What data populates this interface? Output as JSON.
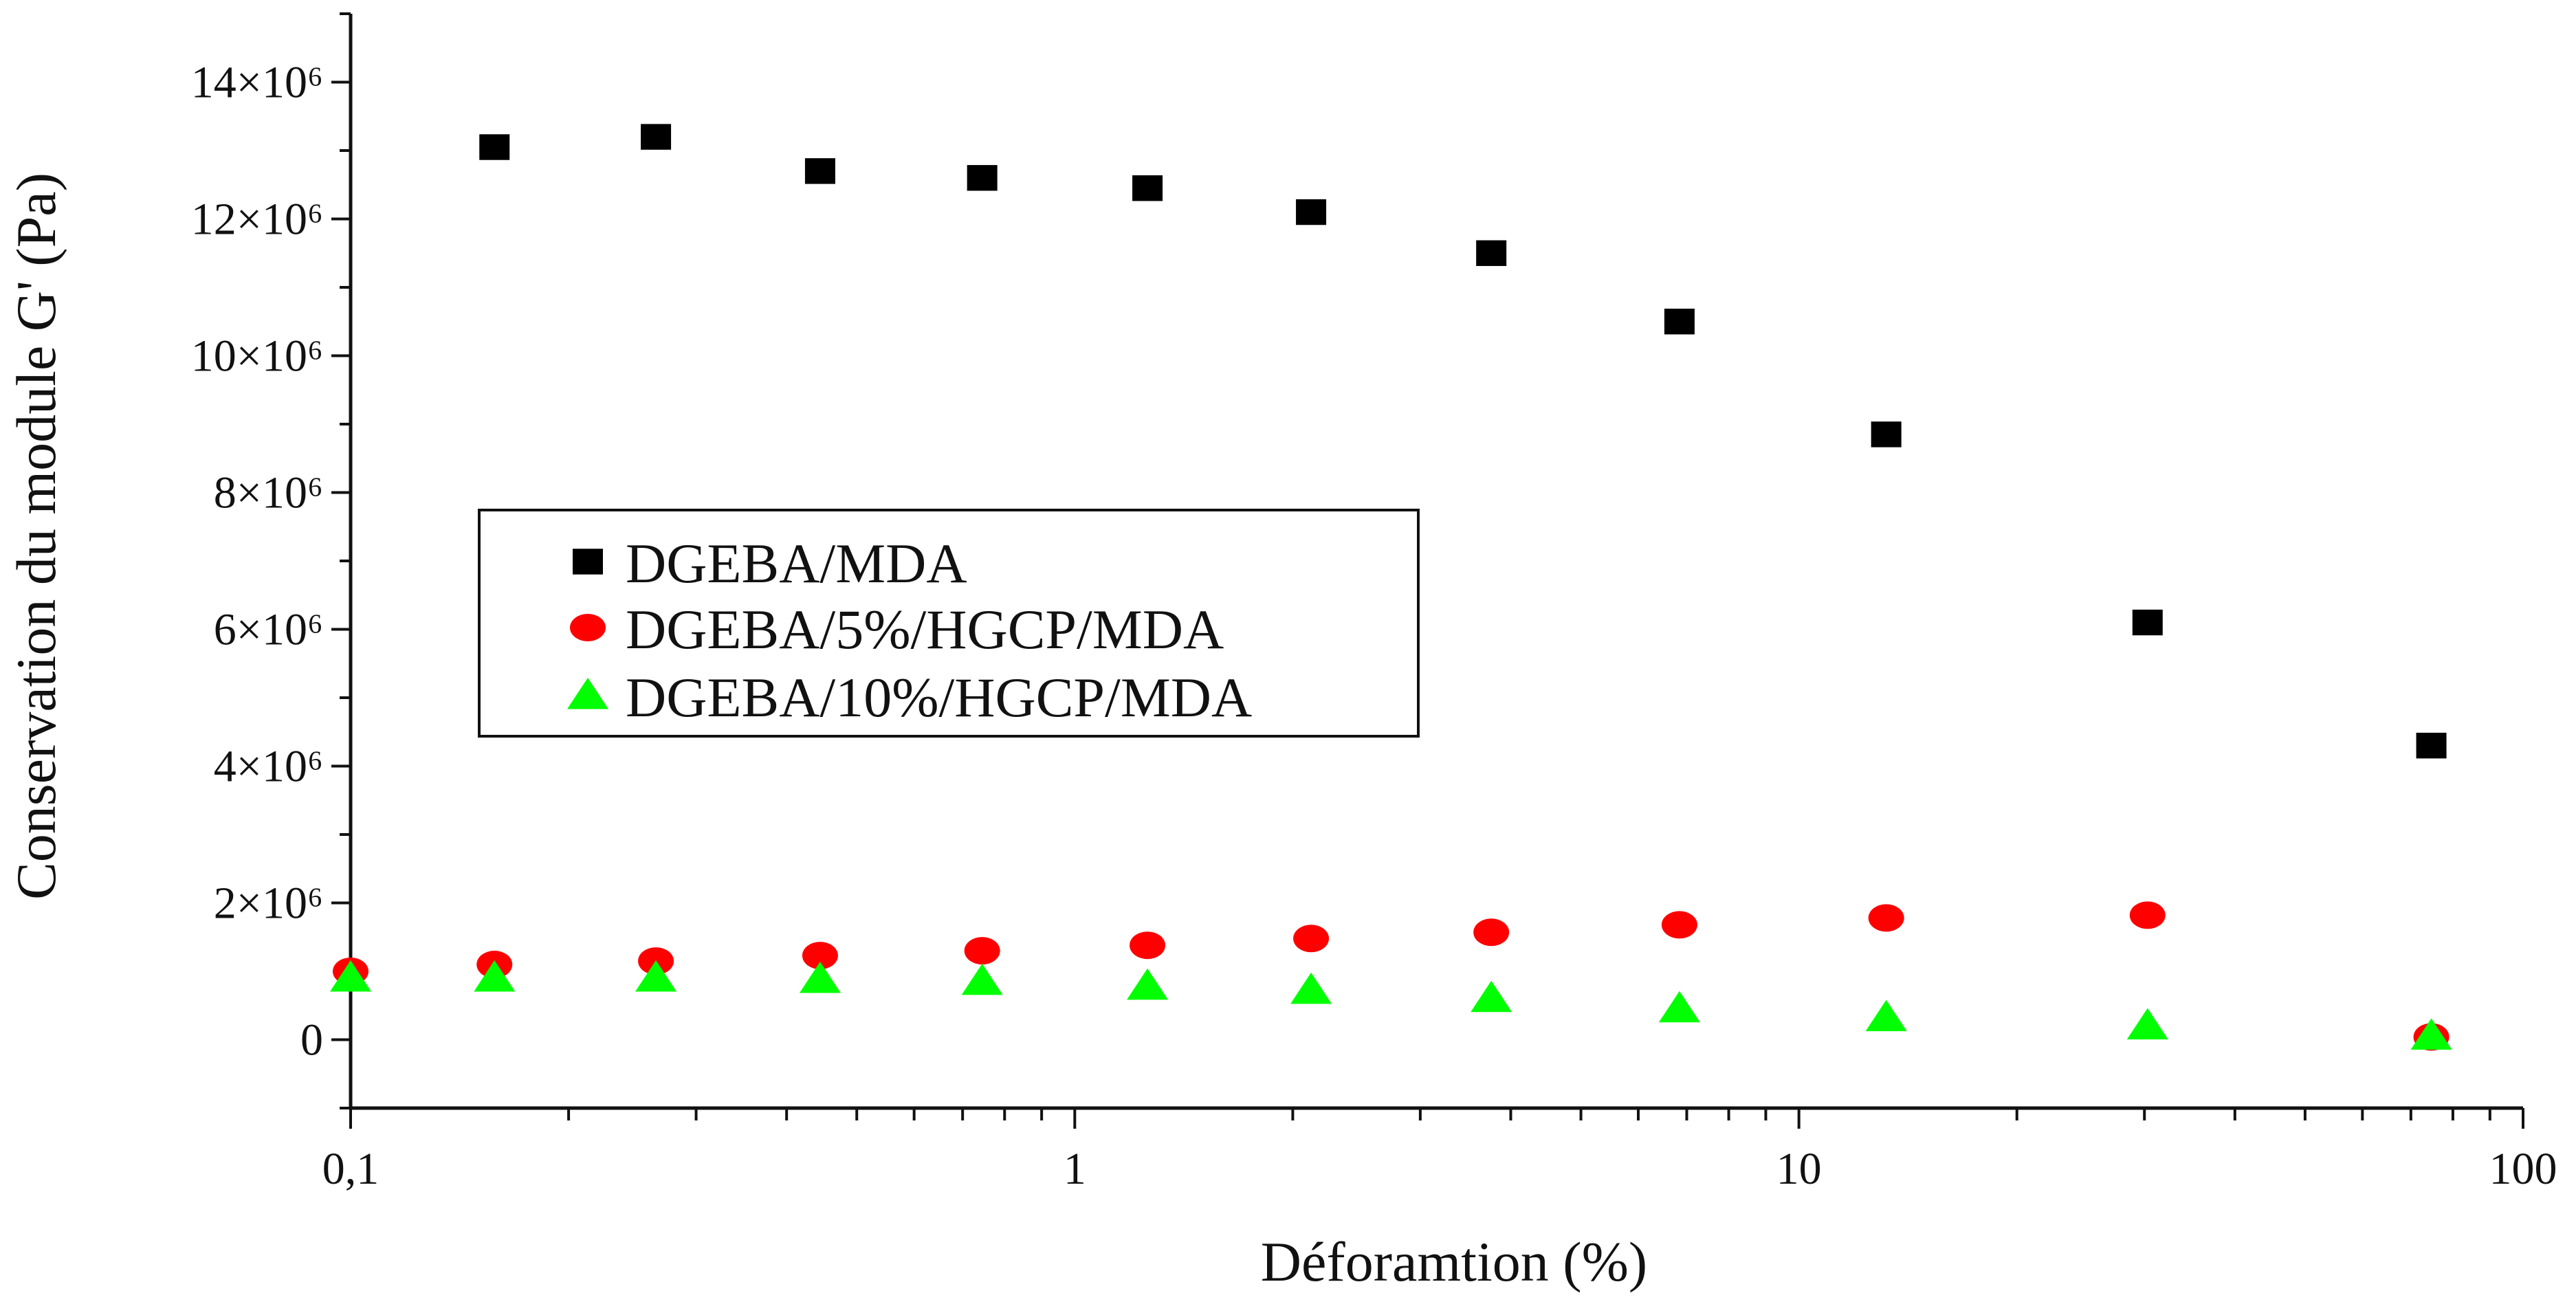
{
  "chart_data": {
    "type": "scatter",
    "title": "",
    "xlabel": "Déforamtion (%)",
    "ylabel": "Conservation du module G' (Pa)",
    "xscale": "log",
    "xlim": [
      0.1,
      100
    ],
    "ylim": [
      -1000000,
      15000000
    ],
    "x_ticks": [
      {
        "value": 0.1,
        "label": "0,1"
      },
      {
        "value": 1,
        "label": "1"
      },
      {
        "value": 10,
        "label": "10"
      },
      {
        "value": 100,
        "label": "100"
      }
    ],
    "y_ticks": [
      {
        "value": 0,
        "label": "0"
      },
      {
        "value": 2000000,
        "label": "2×10⁶"
      },
      {
        "value": 4000000,
        "label": "4×10⁶"
      },
      {
        "value": 6000000,
        "label": "6×10⁶"
      },
      {
        "value": 8000000,
        "label": "8×10⁶"
      },
      {
        "value": 10000000,
        "label": "10×10⁶"
      },
      {
        "value": 12000000,
        "label": "12×10⁶"
      },
      {
        "value": 14000000,
        "label": "14×10⁶"
      }
    ],
    "legend_position": "center-left",
    "series": [
      {
        "name": "DGEBA/MDA",
        "marker": "square",
        "color": "#000000",
        "x": [
          0.158,
          0.264,
          0.445,
          0.745,
          1.26,
          2.12,
          3.76,
          6.84,
          13.2,
          30.3,
          74.7
        ],
        "y": [
          13050000,
          13200000,
          12700000,
          12600000,
          12450000,
          12100000,
          11500000,
          10500000,
          8850000,
          6100000,
          4300000
        ]
      },
      {
        "name": "DGEBA/5%/HGCP/MDA",
        "marker": "circle",
        "color": "#ff0000",
        "x": [
          0.1,
          0.158,
          0.264,
          0.445,
          0.745,
          1.26,
          2.12,
          3.76,
          6.84,
          13.2,
          30.3,
          74.7
        ],
        "y": [
          1000000,
          1100000,
          1150000,
          1230000,
          1300000,
          1380000,
          1480000,
          1570000,
          1680000,
          1780000,
          1820000,
          40000
        ]
      },
      {
        "name": "DGEBA/10%/HGCP/MDA",
        "marker": "triangle",
        "color": "#00ff00",
        "x": [
          0.1,
          0.158,
          0.264,
          0.445,
          0.745,
          1.26,
          2.12,
          3.76,
          6.84,
          13.2,
          30.3,
          74.7
        ],
        "y": [
          900000,
          900000,
          900000,
          880000,
          850000,
          780000,
          720000,
          600000,
          450000,
          320000,
          200000,
          50000
        ]
      }
    ]
  }
}
